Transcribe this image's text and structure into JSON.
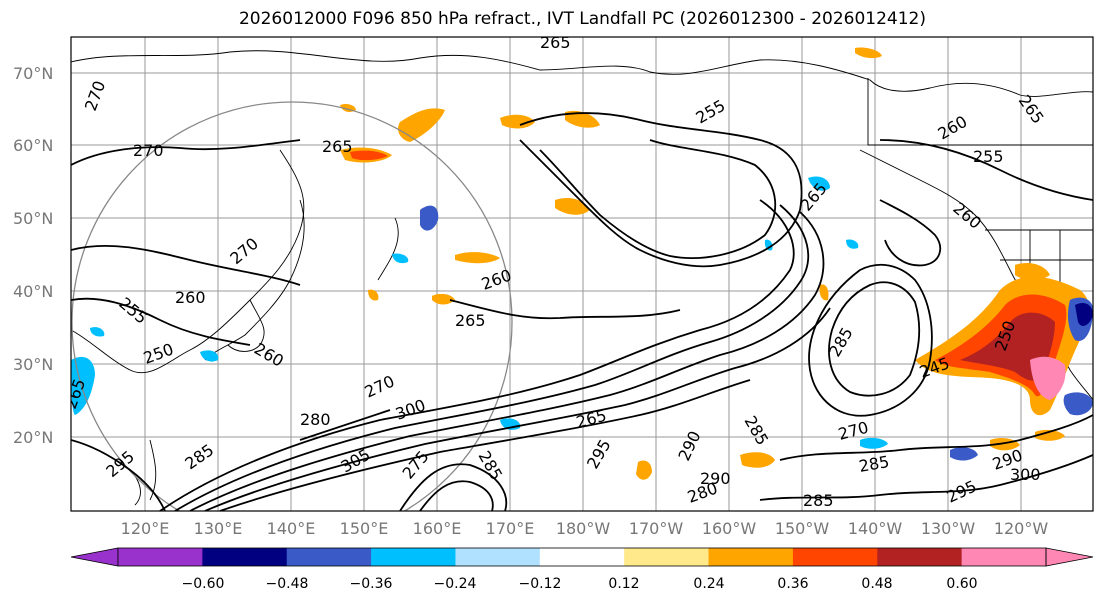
{
  "title": "2026012000 F096 850 hPa refract., IVT Landfall PC (2026012300 - 2026012412)",
  "map": {
    "lat_labels": [
      "70°N",
      "60°N",
      "50°N",
      "40°N",
      "30°N",
      "20°N"
    ],
    "lon_labels": [
      "120°E",
      "130°E",
      "140°E",
      "150°E",
      "160°E",
      "170°E",
      "180°W",
      "170°W",
      "160°W",
      "150°W",
      "140°W",
      "130°W",
      "120°W"
    ],
    "contour_labels": [
      "265",
      "270",
      "270",
      "265",
      "255",
      "260",
      "255",
      "265",
      "265",
      "270",
      "260",
      "260",
      "265",
      "255",
      "250",
      "260",
      "270",
      "280",
      "300",
      "305",
      "285",
      "295",
      "285",
      "265",
      "295",
      "275",
      "290",
      "285",
      "290",
      "280",
      "285",
      "270",
      "285",
      "245",
      "250",
      "290",
      "300",
      "295",
      "285",
      "265",
      "260"
    ]
  },
  "colorbar": {
    "tick_labels": [
      "−0.60",
      "−0.48",
      "−0.36",
      "−0.24",
      "−0.12",
      "0.12",
      "0.24",
      "0.36",
      "0.48",
      "0.60"
    ],
    "colors": [
      "#9932cc",
      "#000080",
      "#3a5bc7",
      "#00bfff",
      "#b0e2ff",
      "#ffffff",
      "#ffe98a",
      "#ffa500",
      "#ff4500",
      "#b22222",
      "#ff87b4"
    ]
  }
}
